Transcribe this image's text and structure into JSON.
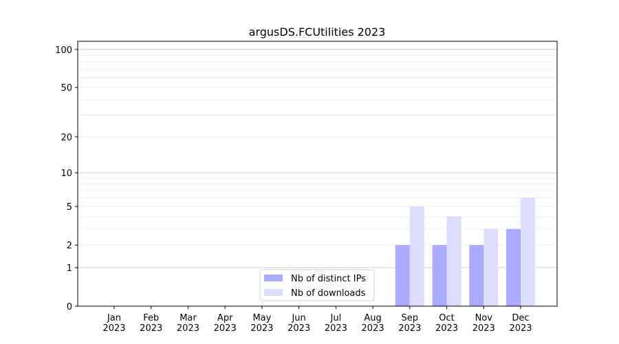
{
  "chart_data": {
    "type": "bar",
    "title": "argusDS.FCUtilities 2023",
    "xlabel": "",
    "ylabel": "",
    "yscale": "log10(1+y)",
    "ylim": [
      0,
      116
    ],
    "yticks": [
      0,
      1,
      2,
      5,
      10,
      20,
      50,
      100
    ],
    "grid": true,
    "legend_position": "bottom-center",
    "categories": [
      [
        "Jan",
        "2023"
      ],
      [
        "Feb",
        "2023"
      ],
      [
        "Mar",
        "2023"
      ],
      [
        "Apr",
        "2023"
      ],
      [
        "May",
        "2023"
      ],
      [
        "Jun",
        "2023"
      ],
      [
        "Jul",
        "2023"
      ],
      [
        "Aug",
        "2023"
      ],
      [
        "Sep",
        "2023"
      ],
      [
        "Oct",
        "2023"
      ],
      [
        "Nov",
        "2023"
      ],
      [
        "Dec",
        "2023"
      ]
    ],
    "series": [
      {
        "name": "Nb of distinct IPs",
        "color": "#aaaaff",
        "values": [
          0,
          0,
          0,
          0,
          0,
          0,
          0,
          0,
          2,
          2,
          2,
          3
        ]
      },
      {
        "name": "Nb of downloads",
        "color": "#ddddff",
        "values": [
          0,
          0,
          0,
          0,
          0,
          0,
          0,
          0,
          5,
          4,
          3,
          6
        ]
      }
    ]
  }
}
